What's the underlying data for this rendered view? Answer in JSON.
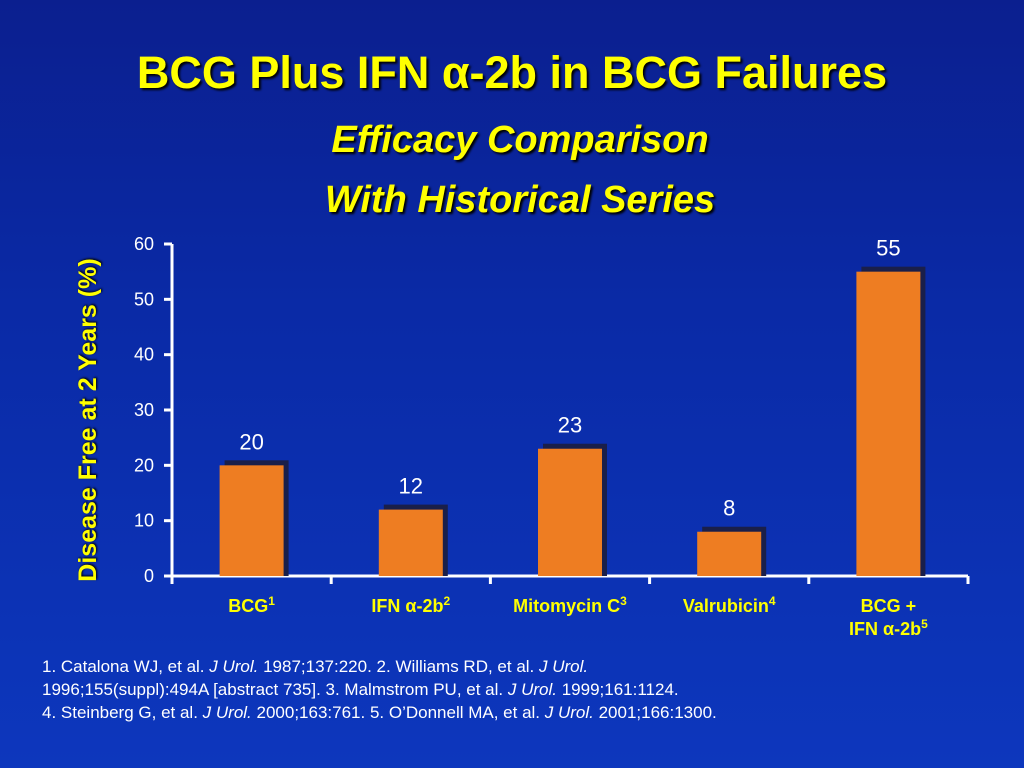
{
  "title": "BCG Plus IFN α-2b in BCG Failures",
  "subtitle_line1": "Efficacy Comparison",
  "subtitle_line2": "With Historical Series",
  "colors": {
    "background": "#0a2aa6",
    "title": "#ffff00",
    "bar": "#ee7d22",
    "bar_shadow": "#1a1f4a",
    "axis": "#ffffff",
    "tick_text": "#ffffff",
    "category_text": "#ffff00",
    "data_label_text": "#ffffff"
  },
  "chart_data": {
    "type": "bar",
    "title": "BCG Plus IFN α-2b in BCG Failures",
    "ylabel": "Disease Free at 2 Years (%)",
    "xlabel": "",
    "categories": [
      {
        "label": "BCG",
        "sup": "1"
      },
      {
        "label": "IFN α-2b",
        "sup": "2"
      },
      {
        "label": "Mitomycin C",
        "sup": "3"
      },
      {
        "label": "Valrubicin",
        "sup": "4"
      },
      {
        "label": "BCG +",
        "label2": "IFN α-2b",
        "sup": "5"
      }
    ],
    "values": [
      20,
      12,
      23,
      8,
      55
    ],
    "data_labels": [
      "20",
      "12",
      "23",
      "8",
      "55"
    ],
    "ylim": [
      0,
      60
    ],
    "yticks": [
      "0",
      "10",
      "20",
      "30",
      "40",
      "50",
      "60"
    ],
    "grid": false,
    "legend": "none"
  },
  "references": {
    "line1_a": "1. Catalona WJ, et al.  ",
    "line1_j1": "J Urol.",
    "line1_b": " 1987;137:220. 2. Williams RD, et al. ",
    "line1_j2": "J Urol.",
    "line2_a": "1996;155(suppl):494A [abstract 735]. 3. Malmstrom PU, et al. ",
    "line2_j": "J Urol.",
    "line2_b": " 1999;161:1124.",
    "line3_a": "4. Steinberg G, et al.  ",
    "line3_j1": "J Urol.",
    "line3_b": " 2000;163:761. 5. O’Donnell MA, et al. ",
    "line3_j2": "J Urol.",
    "line3_c": " 2001;166:1300."
  }
}
